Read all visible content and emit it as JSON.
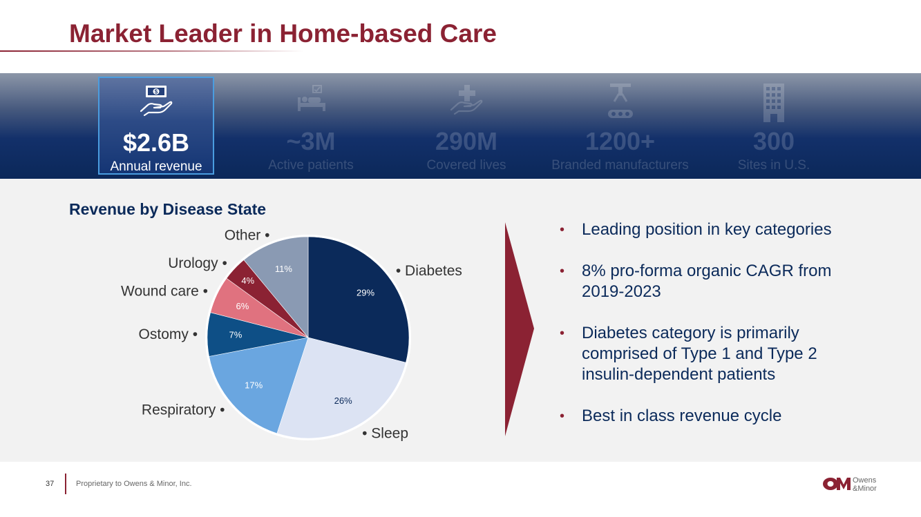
{
  "title": "Market Leader in Home-based Care",
  "stats": [
    {
      "value": "$2.6B",
      "label": "Annual revenue",
      "icon": "cash-hand-icon",
      "active": true
    },
    {
      "value": "~3M",
      "label": "Active patients",
      "icon": "patient-bed-icon",
      "active": false
    },
    {
      "value": "290M",
      "label": "Covered lives",
      "icon": "medical-cross-hand-icon",
      "active": false
    },
    {
      "value": "1200+",
      "label": "Branded manufacturers",
      "icon": "factory-conveyor-icon",
      "active": false
    },
    {
      "value": "300",
      "label": "Sites in U.S.",
      "icon": "building-icon",
      "active": false
    }
  ],
  "chart_data": {
    "type": "pie",
    "title": "Revenue by Disease State",
    "start_angle_deg": 0,
    "direction": "clockwise",
    "slices": [
      {
        "label": "Diabetes",
        "value": 29,
        "value_label": "29%",
        "color": "#0b2a5a",
        "text_color": "#ffffff"
      },
      {
        "label": "Sleep",
        "value": 26,
        "value_label": "26%",
        "color": "#dce3f3",
        "text_color": "#0b2a5a"
      },
      {
        "label": "Respiratory",
        "value": 17,
        "value_label": "17%",
        "color": "#6aa6e0",
        "text_color": "#ffffff"
      },
      {
        "label": "Ostomy",
        "value": 7,
        "value_label": "7%",
        "color": "#0e4f86",
        "text_color": "#ffffff"
      },
      {
        "label": "Wound care",
        "value": 6,
        "value_label": "6%",
        "color": "#e0727f",
        "text_color": "#ffffff"
      },
      {
        "label": "Urology",
        "value": 4,
        "value_label": "4%",
        "color": "#8b2233",
        "text_color": "#ffffff"
      },
      {
        "label": "Other",
        "value": 11,
        "value_label": "11%",
        "color": "#8a9ab3",
        "text_color": "#ffffff"
      }
    ]
  },
  "bullets": [
    "Leading position in key categories",
    "8% pro-forma organic CAGR from 2019-2023",
    "Diabetes category is primarily comprised of Type 1 and Type 2 insulin-dependent patients",
    "Best in class revenue cycle"
  ],
  "footer": {
    "page_number": "37",
    "text": "Proprietary to Owens & Minor, Inc."
  },
  "logo": {
    "mark": "OM",
    "line1": "Owens",
    "line2": "&Minor"
  },
  "colors": {
    "accent": "#8b2233",
    "navy": "#0b2a5a"
  }
}
